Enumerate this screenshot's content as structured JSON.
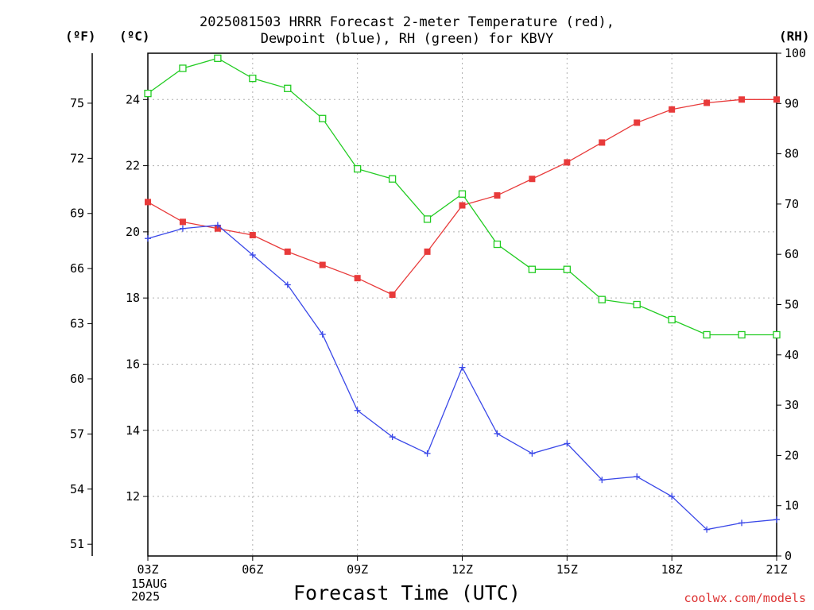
{
  "header": {
    "title_line1": "2025081503 HRRR Forecast 2-meter Temperature (red),",
    "title_line2": "Dewpoint (blue), RH (green) for KBVY"
  },
  "units": {
    "f": "(ºF)",
    "c": "(ºC)",
    "rh": "(RH)"
  },
  "footer": {
    "xlabel": "Forecast Time (UTC)",
    "date_day": "15AUG",
    "date_year": "2025",
    "credit": "coolwx.com/models"
  },
  "chart_data": {
    "type": "line",
    "title": "2025081503 HRRR Forecast 2-meter Temperature (red), Dewpoint (blue), RH (green) for KBVY",
    "xlabel": "Forecast Time (UTC)",
    "x": [
      3,
      4,
      5,
      6,
      7,
      8,
      9,
      10,
      11,
      12,
      13,
      14,
      15,
      16,
      17,
      18,
      19,
      20,
      21
    ],
    "x_ticks": [
      3,
      6,
      9,
      12,
      15,
      18,
      21
    ],
    "x_tick_labels": [
      "03Z",
      "06Z",
      "09Z",
      "12Z",
      "15Z",
      "18Z",
      "21Z"
    ],
    "xlim": [
      3,
      21
    ],
    "y_celsius": {
      "ylim": [
        10.2,
        25.4
      ],
      "ticks": [
        12,
        14,
        16,
        18,
        20,
        22,
        24
      ]
    },
    "y_fahrenheit": {
      "ticks": [
        51,
        54,
        57,
        60,
        63,
        66,
        69,
        72,
        75
      ]
    },
    "y_rh": {
      "ylim": [
        0,
        100
      ],
      "ticks": [
        0,
        10,
        20,
        30,
        40,
        50,
        60,
        70,
        80,
        90,
        100
      ]
    },
    "grid": true,
    "series": [
      {
        "axis": "celsius",
        "color": "#e83a3a",
        "marker": "filled-square",
        "values": [
          20.9,
          20.3,
          20.1,
          19.9,
          19.4,
          19.0,
          18.6,
          18.1,
          19.4,
          20.8,
          21.1,
          21.6,
          22.1,
          22.7,
          23.3,
          23.7,
          23.9,
          24.0,
          24.0
        ]
      },
      {
        "axis": "celsius",
        "color": "#3a48e8",
        "marker": "plus",
        "values": [
          19.8,
          20.1,
          20.2,
          19.3,
          18.4,
          16.9,
          14.6,
          13.8,
          13.3,
          15.9,
          13.9,
          13.3,
          13.6,
          12.5,
          12.6,
          12.0,
          11.0,
          11.2,
          11.3
        ]
      },
      {
        "axis": "rh",
        "color": "#22cc22",
        "marker": "open-square",
        "values": [
          92,
          97,
          99,
          95,
          93,
          87,
          77,
          75,
          67,
          72,
          62,
          57,
          57,
          51,
          50,
          47,
          44,
          44,
          44
        ]
      }
    ]
  }
}
